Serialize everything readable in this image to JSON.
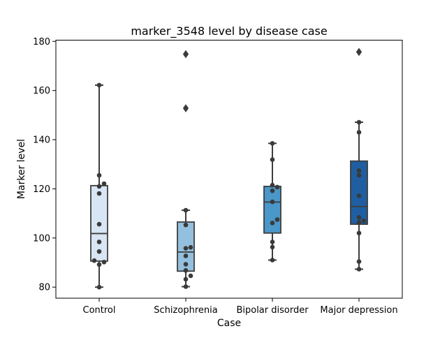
{
  "chart_data": {
    "type": "box",
    "title": "marker_3548 level by disease case",
    "xlabel": "Case",
    "ylabel": "Marker level",
    "categories": [
      "Control",
      "Schizophrenia",
      "Bipolar disorder",
      "Major depression"
    ],
    "ylim": [
      75.5,
      180.5
    ],
    "yticks": [
      80,
      100,
      120,
      140,
      160,
      180
    ],
    "grid": false,
    "colors": [
      "#d7e5f4",
      "#93c0de",
      "#4a97c9",
      "#1f5fa1"
    ],
    "boxes": [
      {
        "category": "Control",
        "whisker_low": 80.0,
        "q1": 90.6,
        "median": 101.8,
        "q3": 121.3,
        "whisker_high": 162.2,
        "outliers": []
      },
      {
        "category": "Schizophrenia",
        "whisker_low": 80.2,
        "q1": 86.5,
        "median": 94.3,
        "q3": 106.5,
        "whisker_high": 111.3,
        "outliers": [
          152.8,
          174.8
        ]
      },
      {
        "category": "Bipolar disorder",
        "whisker_low": 91.0,
        "q1": 102.0,
        "median": 114.6,
        "q3": 121.0,
        "whisker_high": 138.5,
        "outliers": []
      },
      {
        "category": "Major depression",
        "whisker_low": 87.3,
        "q1": 105.6,
        "median": 112.8,
        "q3": 131.3,
        "whisker_high": 147.1,
        "outliers": [
          175.7
        ]
      }
    ],
    "points": [
      [
        80.0,
        89.2,
        90.2,
        90.8,
        94.5,
        98.4,
        105.6,
        118.1,
        121.0,
        122.1,
        125.5,
        162.2
      ],
      [
        80.2,
        83.2,
        84.6,
        86.8,
        89.3,
        92.7,
        95.8,
        96.2,
        105.3,
        111.3,
        152.8,
        174.8
      ],
      [
        91.0,
        96.3,
        98.4,
        106.1,
        107.5,
        114.7,
        119.2,
        120.7,
        121.5,
        131.9,
        138.5
      ],
      [
        87.3,
        90.4,
        102.0,
        106.4,
        107.0,
        108.4,
        117.2,
        125.5,
        127.4,
        143.0,
        147.1,
        175.7
      ]
    ]
  }
}
